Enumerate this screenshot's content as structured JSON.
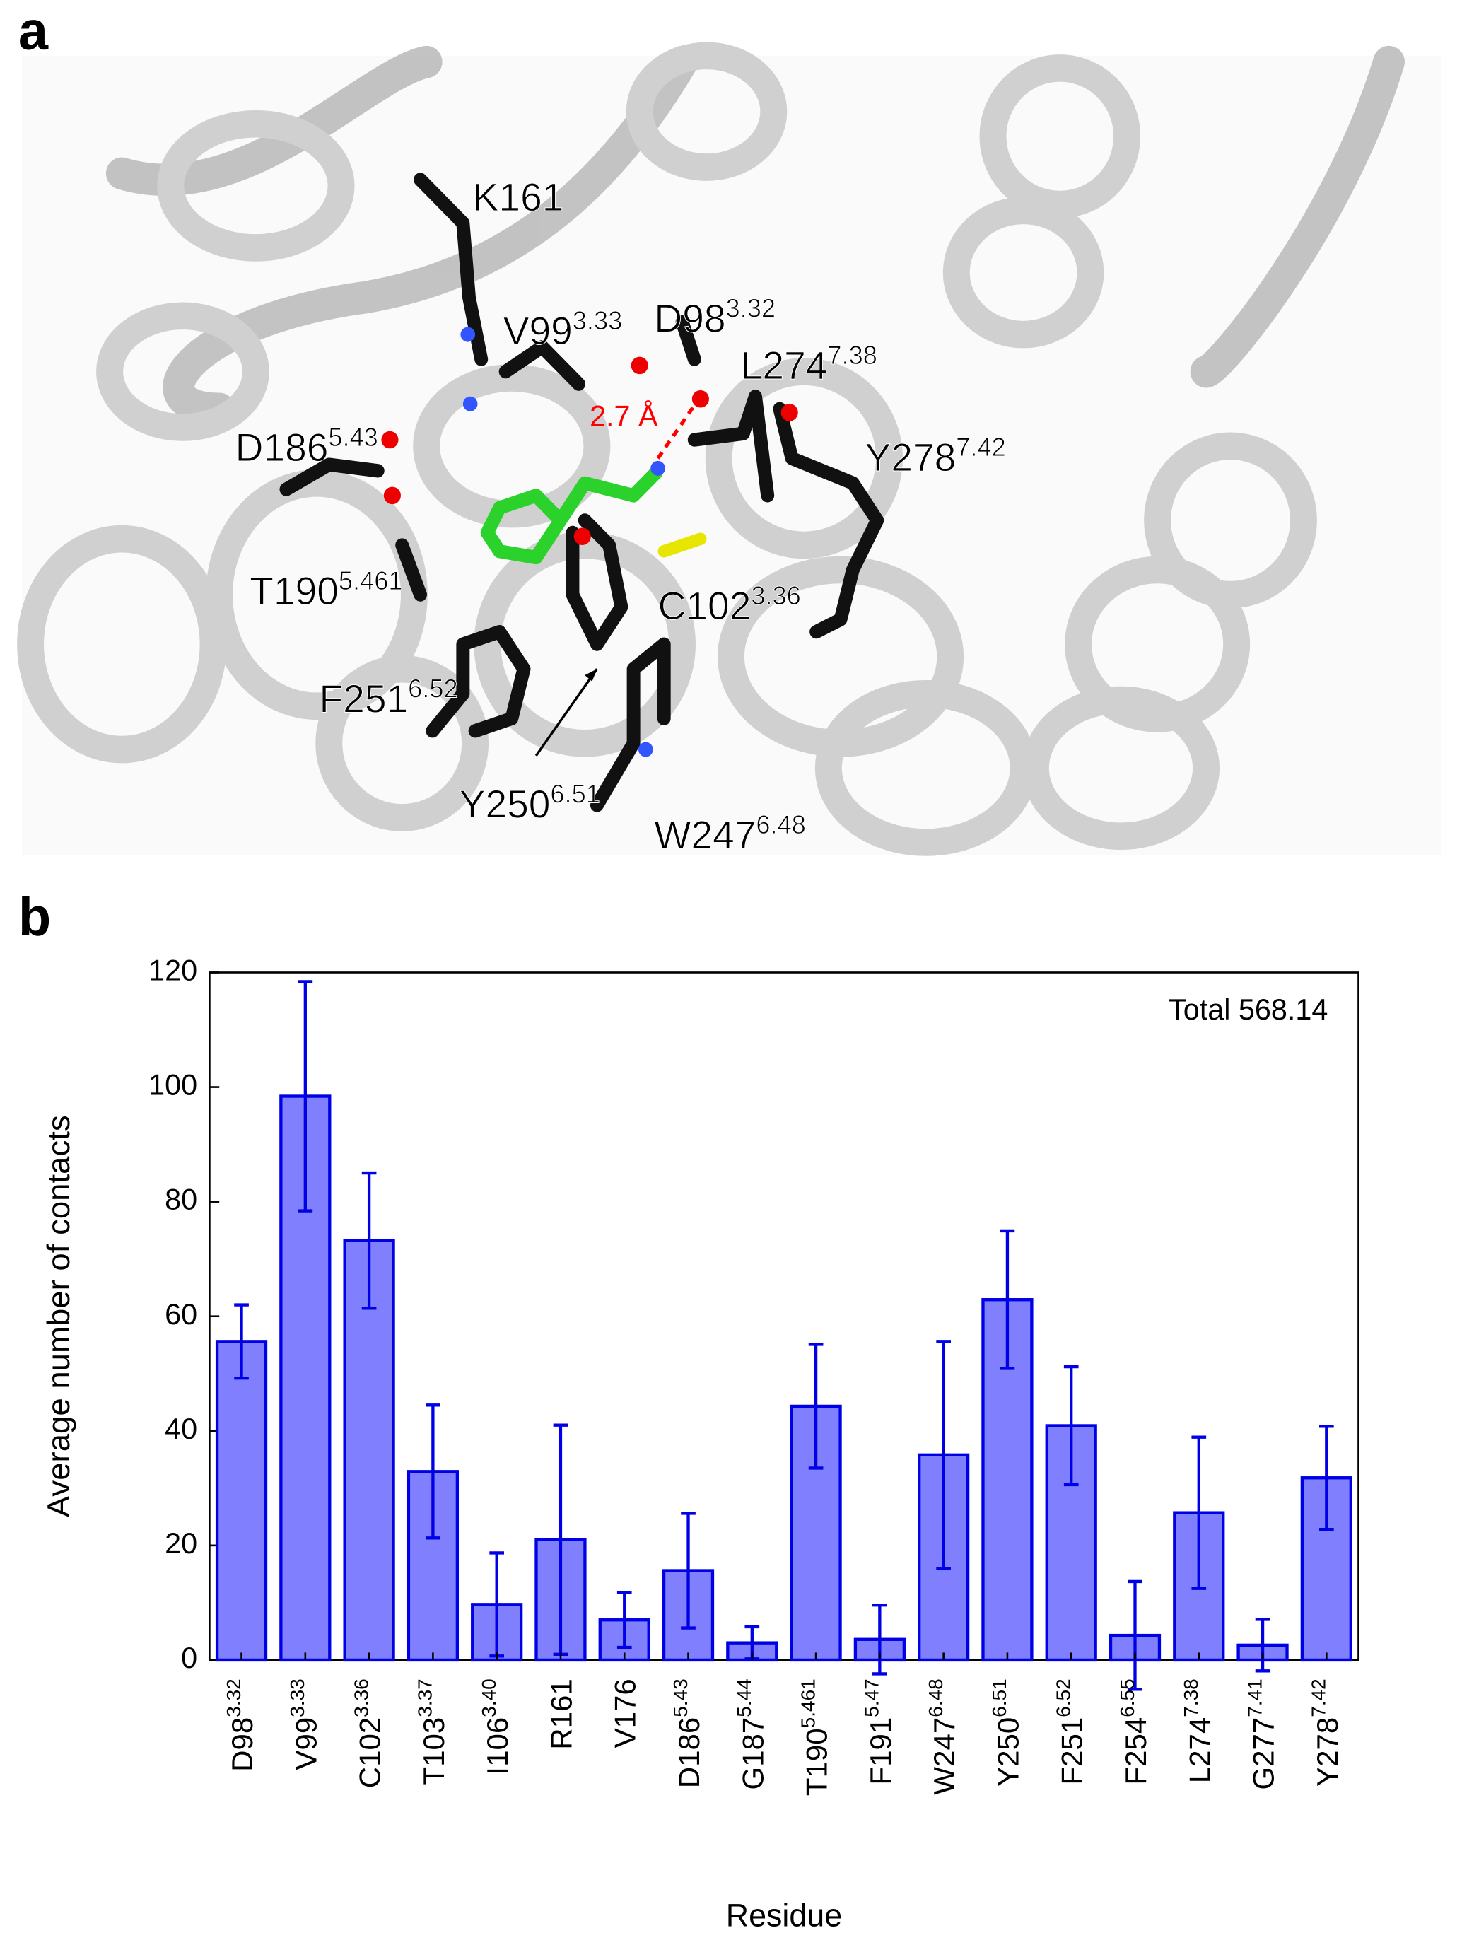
{
  "panel_labels": [
    "a",
    "b"
  ],
  "panel_a": {
    "distance_label": "2.7 Å",
    "residues": [
      {
        "name": "K161"
      },
      {
        "name": "V99",
        "sup": "3.33"
      },
      {
        "name": "D98",
        "sup": "3.32"
      },
      {
        "name": "L274",
        "sup": "7.38"
      },
      {
        "name": "D186",
        "sup": "5.43"
      },
      {
        "name": "Y278",
        "sup": "7.42"
      },
      {
        "name": "T190",
        "sup": "5.461"
      },
      {
        "name": "C102",
        "sup": "3.36"
      },
      {
        "name": "F251",
        "sup": "6.52"
      },
      {
        "name": "Y250",
        "sup": "6.51"
      },
      {
        "name": "W247",
        "sup": "6.48"
      }
    ]
  },
  "chart_data": {
    "type": "bar",
    "x_label": "Residue",
    "y_label": "Average number of contacts",
    "annotation": "Total 568.14",
    "categories": [
      "D98",
      "V99",
      "C102",
      "T103",
      "I106",
      "R161",
      "V176",
      "D186",
      "G187",
      "T190",
      "F191",
      "W247",
      "Y250",
      "F251",
      "F254",
      "L274",
      "G277",
      "Y278"
    ],
    "category_superscripts": [
      "3.32",
      "3.33",
      "3.36",
      "3.37",
      "3.40",
      null,
      null,
      "5.43",
      "5.44",
      "5.461",
      "5.47",
      "6.48",
      "6.51",
      "6.52",
      "6.55",
      "7.38",
      "7.41",
      "7.42"
    ],
    "values": [
      55.6,
      98.4,
      73.2,
      32.9,
      9.7,
      21,
      7,
      15.6,
      3,
      44.3,
      3.6,
      35.8,
      62.9,
      40.9,
      4.3,
      25.7,
      2.6,
      31.8
    ],
    "errors": [
      6.4,
      20,
      11.8,
      11.6,
      9,
      20,
      4.8,
      10,
      2.8,
      10.8,
      6,
      19.8,
      12,
      10.3,
      9.4,
      13.2,
      4.5,
      9
    ],
    "color": "#8080ff",
    "edge_color": "#0000e6",
    "ylim": [
      0,
      120
    ],
    "yticks": [
      0,
      20,
      40,
      60,
      80,
      100,
      120
    ]
  }
}
